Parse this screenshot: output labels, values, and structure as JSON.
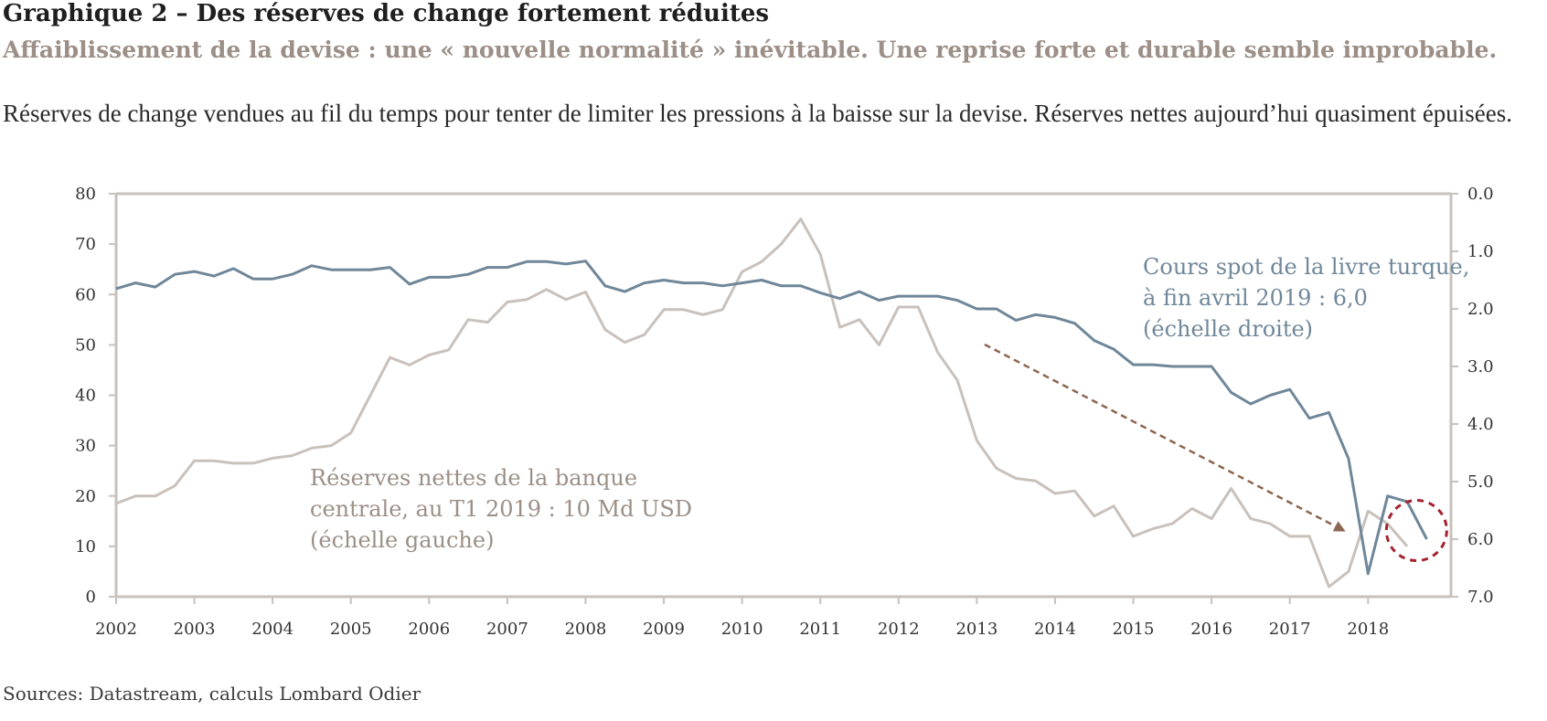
{
  "header": {
    "title": "Graphique 2 – Des réserves de change fortement réduites",
    "subtitle": "Affaiblissement de la devise : une « nouvelle normalité » inévitable. Une reprise forte et durable semble improbable.",
    "description": "Réserves de change vendues au fil du temps pour tenter de limiter les pressions à la baisse sur la devise. Réserves nettes aujourd’hui quasiment épuisées."
  },
  "source": "Sources: Datastream, calculs Lombard Odier",
  "colors": {
    "reserves": "#c9c1bb",
    "currency": "#6f8799",
    "arrow": "#8c6650",
    "circle": "#a3232f",
    "axis": "#c9c1bb"
  },
  "chart_data": {
    "type": "line",
    "x_ticks": [
      "2002",
      "2003",
      "2004",
      "2005",
      "2006",
      "2007",
      "2008",
      "2009",
      "2010",
      "2011",
      "2012",
      "2013",
      "2014",
      "2015",
      "2016",
      "2017",
      "2018"
    ],
    "y_left": {
      "ticks": [
        "0",
        "10",
        "20",
        "30",
        "40",
        "50",
        "60",
        "70",
        "80"
      ],
      "range": [
        0,
        80
      ]
    },
    "y_right": {
      "ticks": [
        "0.0",
        "1.0",
        "2.0",
        "3.0",
        "4.0",
        "5.0",
        "6.0",
        "7.0"
      ],
      "range": [
        0.0,
        7.0
      ],
      "inverted": true
    },
    "annotations": {
      "reserves": [
        "Réserves nettes de la banque",
        "centrale, au T1 2019 : 10 Md USD",
        "(échelle gauche)"
      ],
      "currency": [
        "Cours spot de la livre turque,",
        "à fin avril 2019 : 6,0",
        "(échelle droite)"
      ]
    },
    "series": [
      {
        "axis": "left",
        "x": [
          2002.0,
          2002.25,
          2002.5,
          2002.75,
          2003.0,
          2003.25,
          2003.5,
          2003.75,
          2004.0,
          2004.25,
          2004.5,
          2004.75,
          2005.0,
          2005.25,
          2005.5,
          2005.75,
          2006.0,
          2006.25,
          2006.5,
          2006.75,
          2007.0,
          2007.25,
          2007.5,
          2007.75,
          2008.0,
          2008.25,
          2008.5,
          2008.75,
          2009.0,
          2009.25,
          2009.5,
          2009.75,
          2010.0,
          2010.25,
          2010.5,
          2010.75,
          2011.0,
          2011.25,
          2011.5,
          2011.75,
          2012.0,
          2012.25,
          2012.5,
          2012.75,
          2013.0,
          2013.25,
          2013.5,
          2013.75,
          2014.0,
          2014.25,
          2014.5,
          2014.75,
          2015.0,
          2015.25,
          2015.5,
          2015.75,
          2016.0,
          2016.25,
          2016.5,
          2016.75,
          2017.0,
          2017.25,
          2017.5,
          2017.75,
          2018.0,
          2018.25,
          2018.5
        ],
        "values": [
          18.5,
          20,
          20,
          22,
          27,
          27,
          26.5,
          26.5,
          27.5,
          28,
          29.5,
          30,
          32.5,
          40,
          47.5,
          46,
          48,
          49,
          55,
          54.5,
          58.5,
          59,
          61,
          59,
          60.5,
          53,
          50.5,
          52,
          57,
          57,
          56,
          57,
          64.5,
          66.5,
          70,
          75,
          68,
          53.5,
          55,
          50,
          57.5,
          57.5,
          48.5,
          43,
          31,
          25.5,
          23.5,
          23,
          20.5,
          21,
          16,
          18,
          12,
          13.5,
          14.5,
          17.5,
          15.5,
          21.5,
          15.5,
          14.5,
          12,
          12,
          2,
          5,
          17,
          14.5,
          10
        ]
      },
      {
        "axis": "right",
        "x": [
          2002.0,
          2002.25,
          2002.5,
          2002.75,
          2003.0,
          2003.25,
          2003.5,
          2003.75,
          2004.0,
          2004.25,
          2004.5,
          2004.75,
          2005.0,
          2005.25,
          2005.5,
          2005.75,
          2006.0,
          2006.25,
          2006.5,
          2006.75,
          2007.0,
          2007.25,
          2007.5,
          2007.75,
          2008.0,
          2008.25,
          2008.5,
          2008.75,
          2009.0,
          2009.25,
          2009.5,
          2009.75,
          2010.0,
          2010.25,
          2010.5,
          2010.75,
          2011.0,
          2011.25,
          2011.5,
          2011.75,
          2012.0,
          2012.25,
          2012.5,
          2012.75,
          2013.0,
          2013.25,
          2013.5,
          2013.75,
          2014.0,
          2014.25,
          2014.5,
          2014.75,
          2015.0,
          2015.25,
          2015.5,
          2015.75,
          2016.0,
          2016.25,
          2016.5,
          2016.75,
          2017.0,
          2017.25,
          2017.5,
          2017.75,
          2018.0,
          2018.25,
          2018.5,
          2018.75
        ],
        "values": [
          1.65,
          1.55,
          1.62,
          1.4,
          1.35,
          1.43,
          1.3,
          1.48,
          1.48,
          1.4,
          1.25,
          1.32,
          1.32,
          1.32,
          1.28,
          1.57,
          1.45,
          1.45,
          1.4,
          1.28,
          1.28,
          1.18,
          1.18,
          1.22,
          1.17,
          1.6,
          1.7,
          1.55,
          1.5,
          1.55,
          1.55,
          1.6,
          1.55,
          1.5,
          1.6,
          1.6,
          1.72,
          1.82,
          1.7,
          1.85,
          1.78,
          1.78,
          1.78,
          1.85,
          2.0,
          2.0,
          2.2,
          2.1,
          2.15,
          2.25,
          2.55,
          2.7,
          2.97,
          2.97,
          3.0,
          3.0,
          3.0,
          3.45,
          3.65,
          3.5,
          3.4,
          3.9,
          3.8,
          4.6,
          6.6,
          5.25,
          5.35,
          6.0
        ]
      }
    ]
  }
}
